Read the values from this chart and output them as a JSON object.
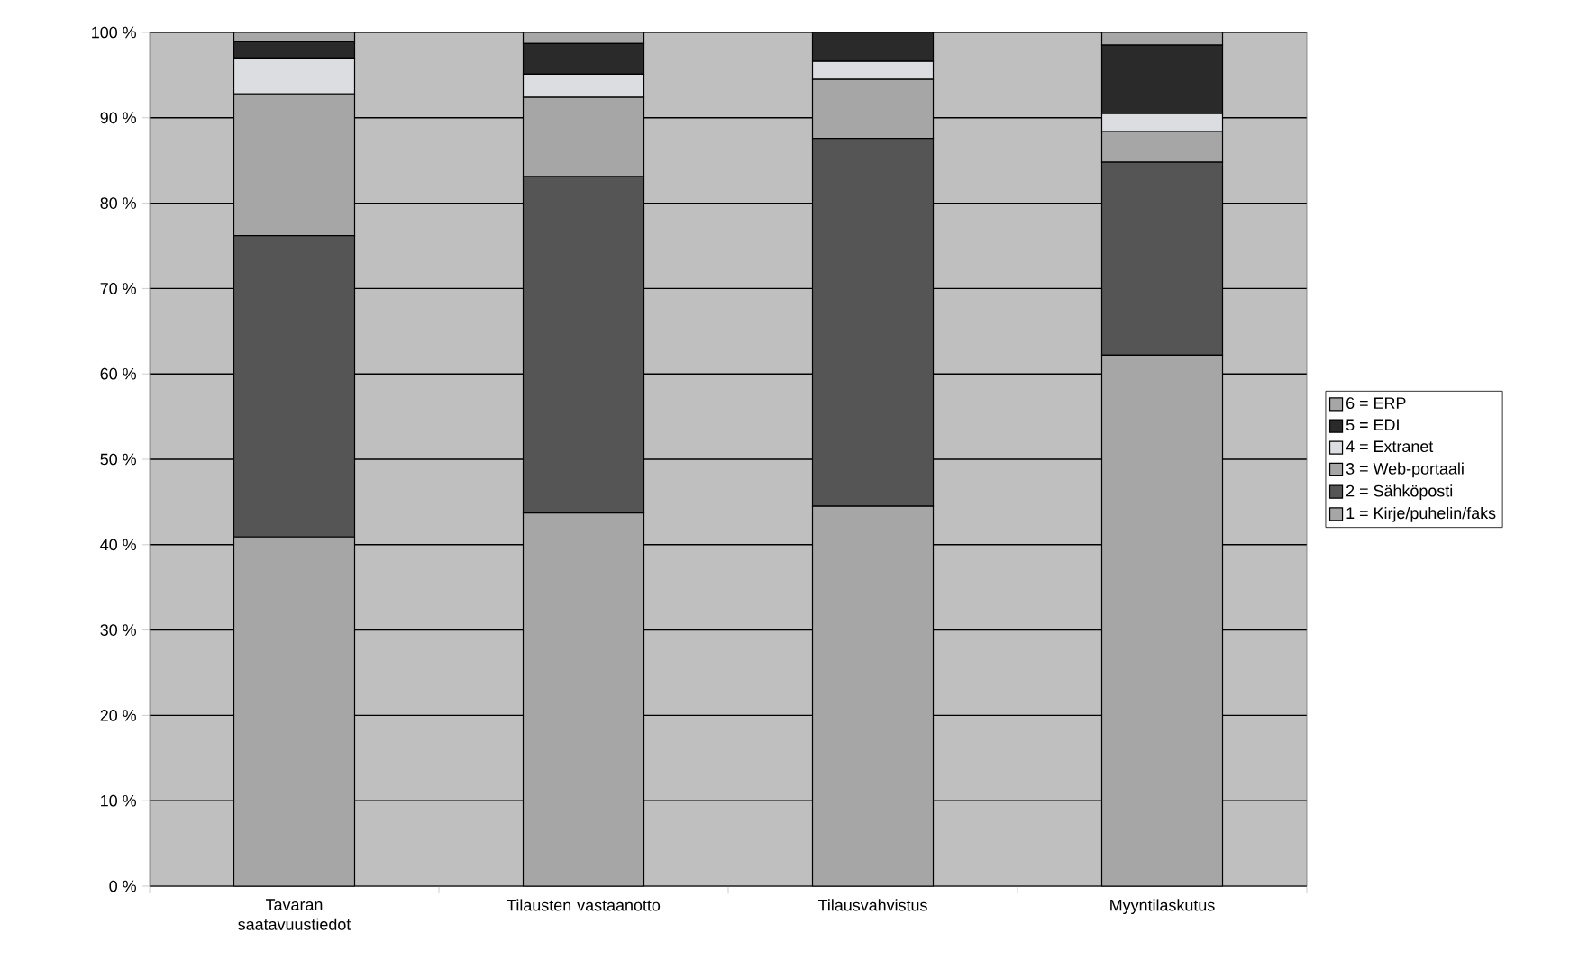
{
  "chart_data": {
    "type": "bar",
    "stacked": true,
    "categories": [
      "Tavaran saatavuustiedot",
      "Tilausten vastaanotto",
      "Tilausvahvistus",
      "Myyntilaskutus"
    ],
    "series": [
      {
        "name": "1 = Kirje/puhelin/faks",
        "color": "#a6a6a6",
        "values": [
          40.9,
          43.7,
          44.5,
          62.2
        ]
      },
      {
        "name": "2 = Sähköposti",
        "color": "#555555",
        "values": [
          35.3,
          39.4,
          43.1,
          22.6
        ]
      },
      {
        "name": "3 = Web-portaali",
        "color": "#a6a6a6",
        "values": [
          16.6,
          9.3,
          6.9,
          3.6
        ]
      },
      {
        "name": "4 = Extranet",
        "color": "#dcdde0",
        "values": [
          4.2,
          2.7,
          2.1,
          2.1
        ]
      },
      {
        "name": "5 = EDI",
        "color": "#2a2a2a",
        "values": [
          1.9,
          3.6,
          3.4,
          8.0
        ]
      },
      {
        "name": "6 = ERP",
        "color": "#a6a6a6",
        "values": [
          1.1,
          1.3,
          0,
          1.5
        ]
      }
    ],
    "ylim": [
      0,
      100
    ],
    "yticks": [
      {
        "value": 0,
        "label": "0 %"
      },
      {
        "value": 10,
        "label": "10 %"
      },
      {
        "value": 20,
        "label": "20 %"
      },
      {
        "value": 30,
        "label": "30 %"
      },
      {
        "value": 40,
        "label": "40 %"
      },
      {
        "value": 50,
        "label": "50 %"
      },
      {
        "value": 60,
        "label": "60 %"
      },
      {
        "value": 70,
        "label": "70 %"
      },
      {
        "value": 80,
        "label": "80 %"
      },
      {
        "value": 90,
        "label": "90 %"
      },
      {
        "value": 100,
        "label": "100 %"
      }
    ],
    "grid": "y",
    "legend": "right"
  }
}
